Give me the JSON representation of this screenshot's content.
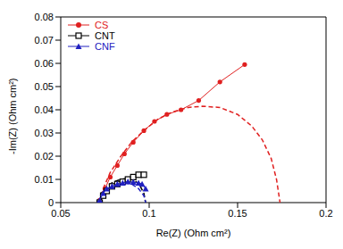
{
  "chart_data": {
    "type": "scatter",
    "x_label": "Re(Z) (Ohm cm²)",
    "y_label": "-Im(Z) (Ohm cm²)",
    "xlim": [
      0.05,
      0.2
    ],
    "xticks": [
      0.05,
      0.1,
      0.15,
      0.2
    ],
    "ylim": [
      0,
      0.08
    ],
    "yticks": [
      0,
      0.01,
      0.02,
      0.03,
      0.04,
      0.05,
      0.06,
      0.07,
      0.08
    ],
    "legend": "upper left",
    "series": [
      {
        "name": "CS",
        "color": "#e02020",
        "marker": "circle",
        "line_style": "solid",
        "x": [
          0.072,
          0.075,
          0.078,
          0.082,
          0.086,
          0.091,
          0.097,
          0.103,
          0.11,
          0.118,
          0.128,
          0.14,
          0.154
        ],
        "values": [
          0.001,
          0.006,
          0.011,
          0.016,
          0.021,
          0.026,
          0.031,
          0.035,
          0.038,
          0.04,
          0.044,
          0.052,
          0.0595
        ],
        "fit": {
          "line_style": "dashed",
          "x": [
            0.072,
            0.074,
            0.078,
            0.084,
            0.09,
            0.097,
            0.105,
            0.113,
            0.122,
            0.13,
            0.14,
            0.15,
            0.158,
            0.164,
            0.169,
            0.172,
            0.174
          ],
          "values": [
            0,
            0.006,
            0.013,
            0.02,
            0.026,
            0.031,
            0.036,
            0.039,
            0.041,
            0.0415,
            0.041,
            0.038,
            0.033,
            0.027,
            0.019,
            0.01,
            0
          ]
        }
      },
      {
        "name": "CNT",
        "color": "#000000",
        "marker": "square",
        "line_style": "solid",
        "x": [
          0.072,
          0.074,
          0.076,
          0.079,
          0.082,
          0.085,
          0.088,
          0.091,
          0.094,
          0.097
        ],
        "values": [
          0,
          0.003,
          0.005,
          0.007,
          0.008,
          0.009,
          0.01,
          0.011,
          0.012,
          0.012
        ],
        "fit": {
          "line_style": "dashed",
          "x": [
            0.071,
            0.073,
            0.076,
            0.08,
            0.084,
            0.088,
            0.092,
            0.095,
            0.097,
            0.098
          ],
          "values": [
            0,
            0.004,
            0.007,
            0.009,
            0.01,
            0.0105,
            0.0095,
            0.007,
            0.004,
            0
          ]
        }
      },
      {
        "name": "CNF",
        "color": "#2020c0",
        "marker": "triangle",
        "line_style": "solid",
        "x": [
          0.072,
          0.074,
          0.076,
          0.079,
          0.082,
          0.085,
          0.088,
          0.091,
          0.094,
          0.096,
          0.098
        ],
        "values": [
          0.001,
          0.004,
          0.006,
          0.007,
          0.008,
          0.0085,
          0.009,
          0.0088,
          0.0085,
          0.008,
          0.006
        ],
        "fit": {
          "line_style": "dashed",
          "x": [
            0.071,
            0.074,
            0.078,
            0.082,
            0.086,
            0.09,
            0.094,
            0.097,
            0.098
          ],
          "values": [
            0,
            0.004,
            0.007,
            0.008,
            0.0085,
            0.008,
            0.006,
            0.003,
            0
          ]
        }
      }
    ]
  }
}
